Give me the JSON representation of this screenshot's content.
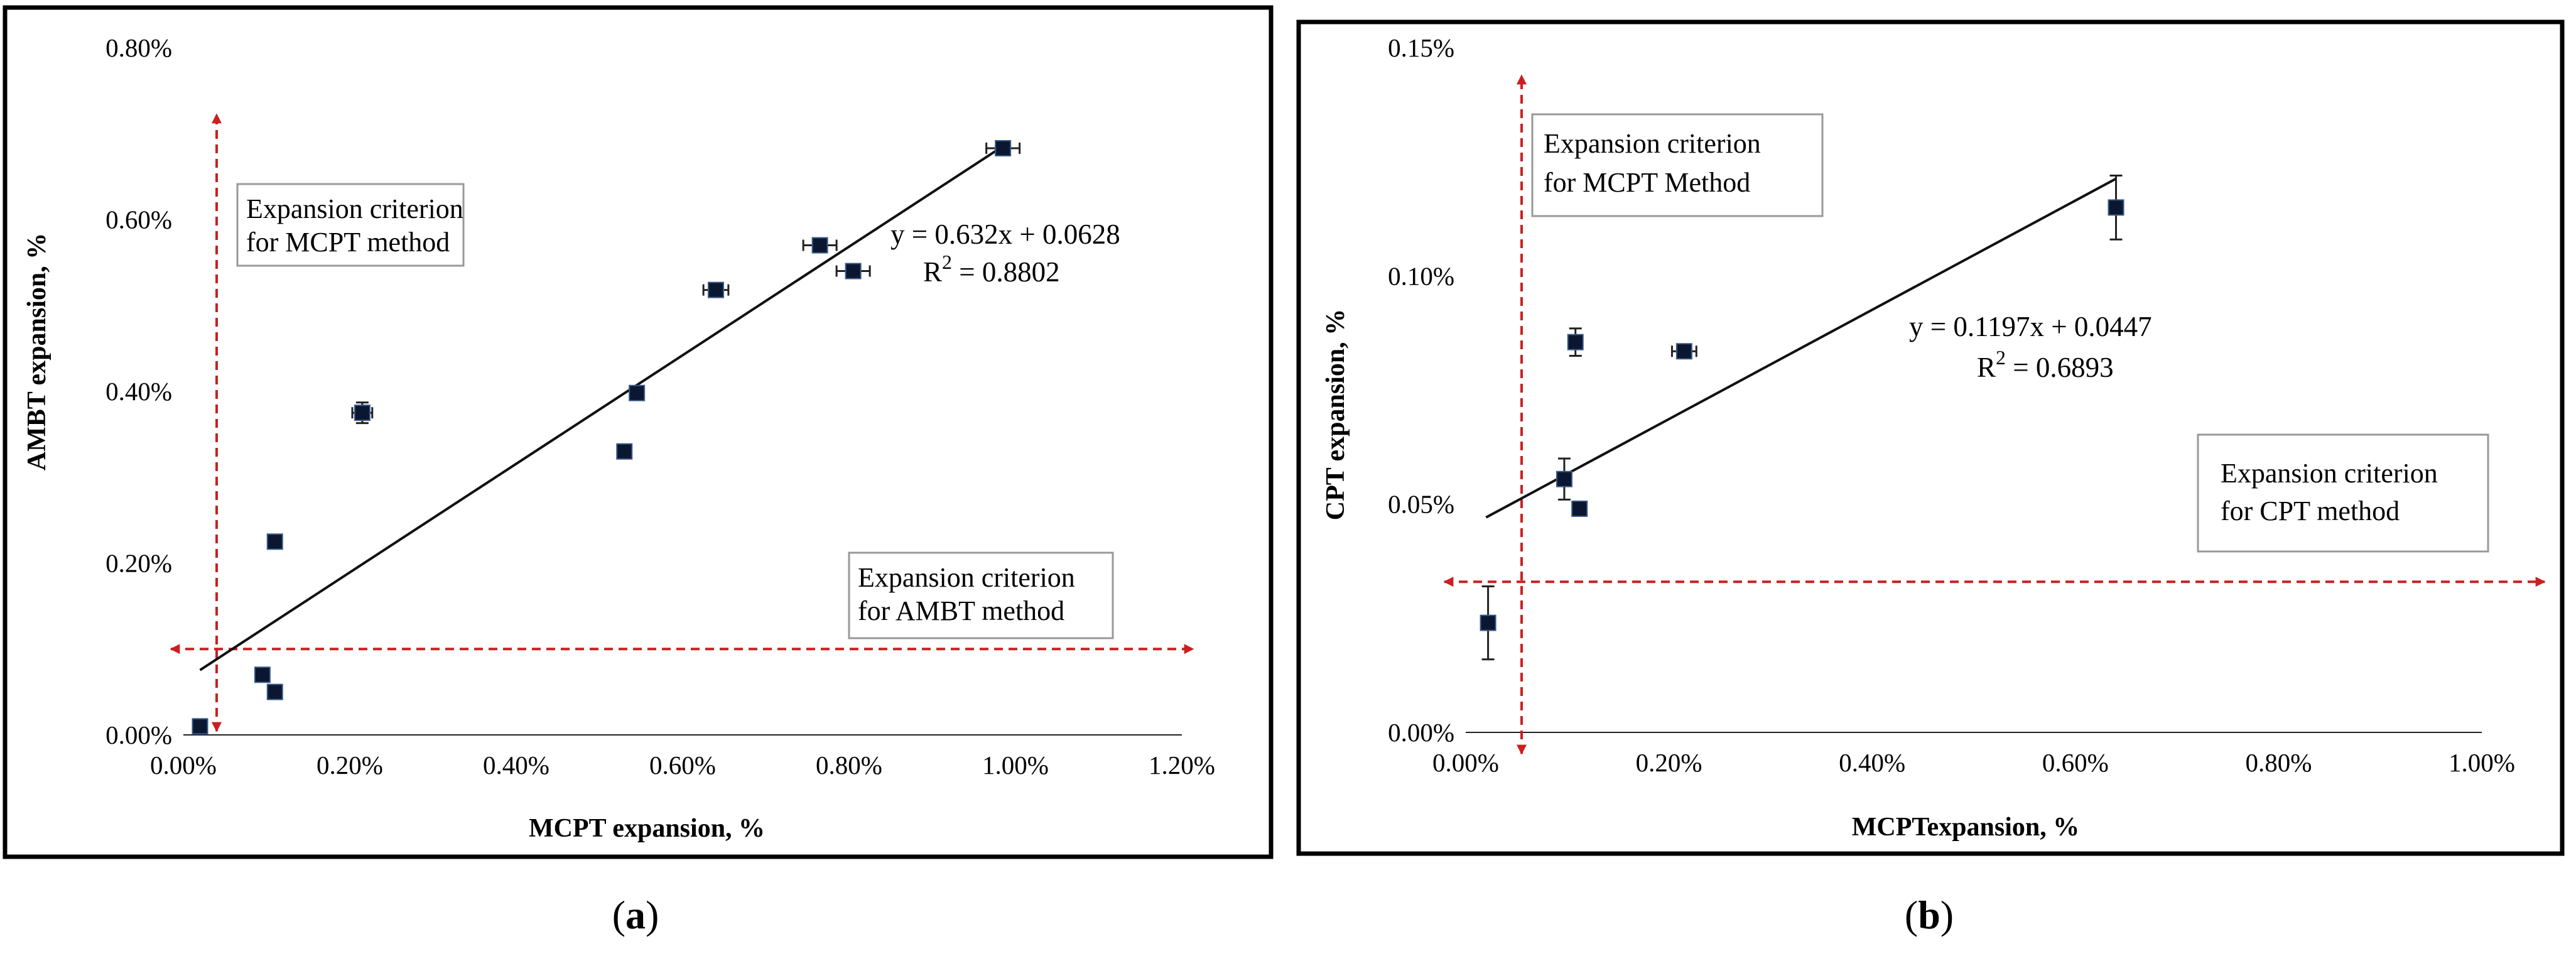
{
  "chart_data": [
    {
      "type": "scatter",
      "panel_label": "(a)",
      "panel_letter": "a",
      "xlabel": "MCPT expansion, %",
      "ylabel": "AMBT expansion, %",
      "xlim": [
        0,
        1.2
      ],
      "ylim": [
        0,
        0.8
      ],
      "x_ticks": [
        0,
        0.2,
        0.4,
        0.6,
        0.8,
        1.0,
        1.2
      ],
      "x_tick_labels": [
        "0.00%",
        "0.20%",
        "0.40%",
        "0.60%",
        "0.80%",
        "1.00%",
        "1.20%"
      ],
      "y_ticks": [
        0,
        0.2,
        0.4,
        0.6,
        0.8
      ],
      "y_tick_labels": [
        "0.00%",
        "0.20%",
        "0.40%",
        "0.60%",
        "0.80%"
      ],
      "points": [
        {
          "x": 0.02,
          "y": 0.01,
          "xerr": 0.0,
          "yerr": 0.0
        },
        {
          "x": 0.095,
          "y": 0.07,
          "xerr": 0.0,
          "yerr": 0.0
        },
        {
          "x": 0.11,
          "y": 0.05,
          "xerr": 0.0,
          "yerr": 0.0
        },
        {
          "x": 0.11,
          "y": 0.225,
          "xerr": 0.0,
          "yerr": 0.0
        },
        {
          "x": 0.215,
          "y": 0.375,
          "xerr": 0.012,
          "yerr": 0.012
        },
        {
          "x": 0.53,
          "y": 0.33,
          "xerr": 0.0,
          "yerr": 0.0
        },
        {
          "x": 0.545,
          "y": 0.398,
          "xerr": 0.008,
          "yerr": 0.006
        },
        {
          "x": 0.64,
          "y": 0.518,
          "xerr": 0.015,
          "yerr": 0.004
        },
        {
          "x": 0.765,
          "y": 0.57,
          "xerr": 0.02,
          "yerr": 0.0
        },
        {
          "x": 0.805,
          "y": 0.54,
          "xerr": 0.02,
          "yerr": 0.0
        },
        {
          "x": 0.985,
          "y": 0.683,
          "xerr": 0.02,
          "yerr": 0.0
        }
      ],
      "trendline": {
        "slope": 0.632,
        "intercept": 0.0628,
        "x_range": [
          0.02,
          0.985
        ]
      },
      "equation_line1": "y = 0.632x + 0.0628",
      "r2_prefix": "R",
      "r2_exp": "2",
      "r2_value": " = 0.8802",
      "criteria": [
        {
          "orientation": "vertical",
          "value": 0.04,
          "color": "#cc1f1f",
          "lines": [
            "Expansion criterion",
            "for MCPT method"
          ]
        },
        {
          "orientation": "horizontal",
          "value": 0.1,
          "color": "#cc1f1f",
          "lines": [
            "Expansion criterion",
            "for AMBT method"
          ]
        }
      ]
    },
    {
      "type": "scatter",
      "panel_label": "(b)",
      "panel_letter": "b",
      "xlabel": "MCPTexpansion, %",
      "ylabel": "CPT expansion, %",
      "xlim": [
        0,
        1.0
      ],
      "ylim": [
        0,
        0.15
      ],
      "x_ticks": [
        0,
        0.2,
        0.4,
        0.6,
        0.8,
        1.0
      ],
      "x_tick_labels": [
        "0.00%",
        "0.20%",
        "0.40%",
        "0.60%",
        "0.80%",
        "1.00%"
      ],
      "y_ticks": [
        0,
        0.05,
        0.1,
        0.15
      ],
      "y_tick_labels": [
        "0.00%",
        "0.05%",
        "0.10%",
        "0.15%"
      ],
      "points": [
        {
          "x": 0.022,
          "y": 0.024,
          "xerr": 0.0,
          "yerr": 0.008
        },
        {
          "x": 0.097,
          "y": 0.0555,
          "xerr": 0.0,
          "yerr": 0.0045
        },
        {
          "x": 0.112,
          "y": 0.049,
          "xerr": 0.0,
          "yerr": 0.0
        },
        {
          "x": 0.108,
          "y": 0.0855,
          "xerr": 0.0,
          "yerr": 0.003
        },
        {
          "x": 0.215,
          "y": 0.0835,
          "xerr": 0.012,
          "yerr": 0.0
        },
        {
          "x": 0.64,
          "y": 0.115,
          "xerr": 0.0,
          "yerr": 0.007
        }
      ],
      "trendline": {
        "slope": 0.1197,
        "intercept": 0.0447,
        "x_range": [
          0.02,
          0.64
        ]
      },
      "equation_line1": "y = 0.1197x + 0.0447",
      "r2_prefix": "R",
      "r2_exp": "2",
      "r2_value": " = 0.6893",
      "criteria": [
        {
          "orientation": "vertical",
          "value": 0.055,
          "color": "#cc1f1f",
          "lines": [
            "Expansion criterion",
            "for MCPT Method"
          ]
        },
        {
          "orientation": "horizontal",
          "value": 0.033,
          "color": "#cc1f1f",
          "lines": [
            "Expansion criterion",
            "for CPT method"
          ]
        }
      ]
    }
  ]
}
